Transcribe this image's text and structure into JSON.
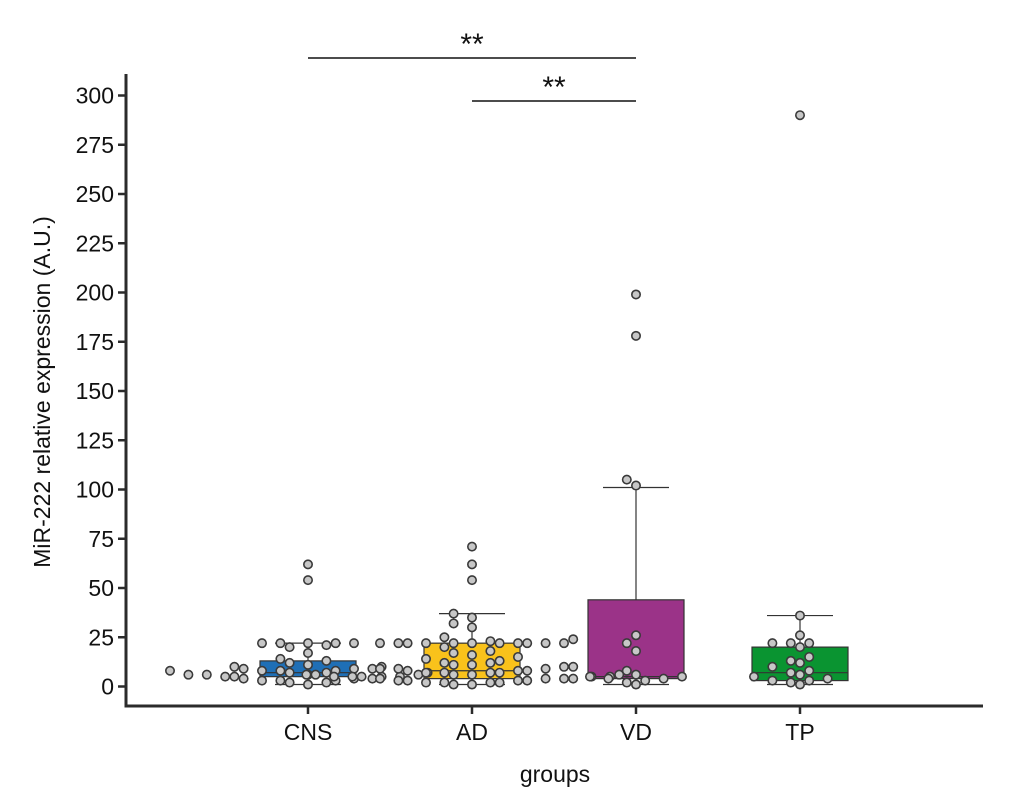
{
  "chart_data": {
    "type": "box",
    "title": "",
    "xlabel": "groups",
    "ylabel": "MiR-222 relative expression (A.U.)",
    "ylim": [
      -10,
      310
    ],
    "yticks": [
      0,
      25,
      50,
      75,
      100,
      125,
      150,
      175,
      200,
      225,
      250,
      275,
      300
    ],
    "ytick_labels": [
      "0",
      "25",
      "50",
      "75",
      "100",
      "125",
      "150",
      "175",
      "200",
      "225",
      "250",
      "275",
      "300"
    ],
    "categories": [
      "CNS",
      "AD",
      "VD",
      "TP"
    ],
    "colors": {
      "CNS": "#1f6fb6",
      "AD": "#f9c21b",
      "VD": "#9b3388",
      "TP": "#0a9431",
      "point_fill": "#c7c7c7",
      "point_edge": "#3a3a3a",
      "axis": "#2b2b2b"
    },
    "boxes": [
      {
        "group": "CNS",
        "whisker_low": 1,
        "q1": 5,
        "median": 7,
        "q3": 13,
        "whisker_high": 22,
        "points": [
          62,
          54,
          22,
          22,
          22,
          22,
          22,
          21,
          20,
          17,
          14,
          13,
          12,
          11,
          10,
          10,
          9,
          9,
          9,
          8,
          8,
          8,
          8,
          7,
          7,
          7,
          6,
          6,
          6,
          6,
          5,
          5,
          5,
          5,
          4,
          4,
          4,
          3,
          3,
          3,
          2,
          2,
          1
        ]
      },
      {
        "group": "AD",
        "whisker_low": 1,
        "q1": 4,
        "median": 8,
        "q3": 22,
        "whisker_high": 37,
        "points": [
          71,
          62,
          54,
          37,
          35,
          32,
          30,
          25,
          24,
          23,
          22,
          22,
          22,
          22,
          22,
          22,
          22,
          22,
          22,
          22,
          22,
          20,
          18,
          17,
          16,
          15,
          14,
          13,
          12,
          12,
          11,
          11,
          10,
          10,
          9,
          9,
          9,
          8,
          8,
          8,
          7,
          7,
          7,
          7,
          6,
          6,
          6,
          6,
          6,
          5,
          5,
          5,
          5,
          5,
          4,
          4,
          4,
          4,
          3,
          3,
          3,
          3,
          2,
          2,
          2,
          2,
          1,
          1
        ]
      },
      {
        "group": "VD",
        "whisker_low": 1,
        "q1": 4,
        "median": 5,
        "q3": 44,
        "whisker_high": 101,
        "points": [
          199,
          178,
          105,
          102,
          26,
          22,
          18,
          8,
          6,
          5,
          5,
          4,
          4,
          3,
          2,
          1
        ]
      },
      {
        "group": "TP",
        "whisker_low": 1,
        "q1": 3,
        "median": 7,
        "q3": 20,
        "whisker_high": 36,
        "points": [
          290,
          36,
          26,
          22,
          22,
          22,
          20,
          15,
          13,
          12,
          10,
          8,
          7,
          6,
          5,
          4,
          3,
          3,
          2,
          1
        ]
      }
    ],
    "significance": [
      {
        "from": "CNS",
        "to": "VD",
        "label": "**"
      },
      {
        "from": "AD",
        "to": "VD",
        "label": "**"
      }
    ]
  }
}
